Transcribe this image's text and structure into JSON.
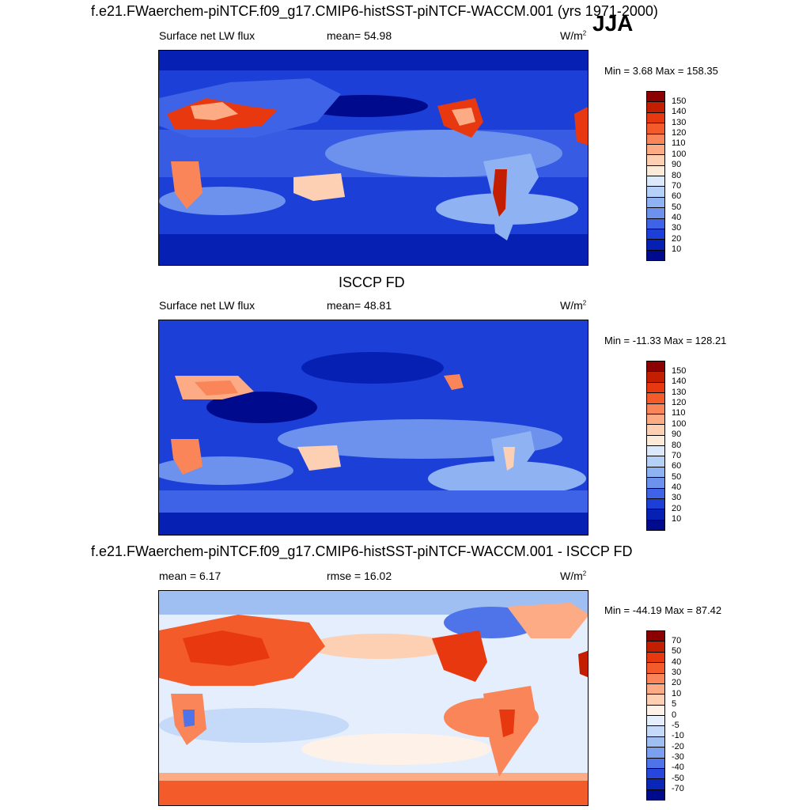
{
  "season": "JJA",
  "panels": [
    {
      "title": "f.e21.FWaerchem-piNTCF.f09_g17.CMIP6-histSST-piNTCF-WACCM.001 (yrs 1971-2000)",
      "left_label": "Surface net LW flux",
      "center_label": "mean=  54.98",
      "units": "W/m",
      "units_sup": "2",
      "minmax": "Min =   3.68 Max = 158.35",
      "colorbar_labels": [
        "150",
        "140",
        "130",
        "120",
        "110",
        "100",
        "90",
        "80",
        "70",
        "60",
        "50",
        "40",
        "30",
        "20",
        "10"
      ],
      "colorbar_colors": [
        "#8b0000",
        "#c41e00",
        "#e8380f",
        "#f45b2b",
        "#f98558",
        "#fcab84",
        "#fdd0b4",
        "#fdebd9",
        "#dbe9fb",
        "#b6d1f7",
        "#8fb3f2",
        "#6c92ee",
        "#3f63e6",
        "#1c3fd8",
        "#0620b4",
        "#000a8c"
      ]
    },
    {
      "title": "ISCCP FD",
      "left_label": "Surface net LW flux",
      "center_label": "mean=  48.81",
      "units": "W/m",
      "units_sup": "2",
      "minmax": "Min = -11.33 Max = 128.21",
      "colorbar_labels": [
        "150",
        "140",
        "130",
        "120",
        "110",
        "100",
        "90",
        "80",
        "70",
        "60",
        "50",
        "40",
        "30",
        "20",
        "10"
      ],
      "colorbar_colors": [
        "#8b0000",
        "#c41e00",
        "#e8380f",
        "#f45b2b",
        "#f98558",
        "#fcab84",
        "#fdd0b4",
        "#fdebd9",
        "#dbe9fb",
        "#b6d1f7",
        "#8fb3f2",
        "#6c92ee",
        "#3f63e6",
        "#1c3fd8",
        "#0620b4",
        "#000a8c"
      ]
    },
    {
      "title": "f.e21.FWaerchem-piNTCF.f09_g17.CMIP6-histSST-piNTCF-WACCM.001 - ISCCP FD",
      "left_label": "mean =   6.17",
      "center_label": "rmse =  16.02",
      "units": "W/m",
      "units_sup": "2",
      "minmax": "Min = -44.19 Max =  87.42",
      "colorbar_labels": [
        "70",
        "50",
        "40",
        "30",
        "20",
        "10",
        "5",
        "0",
        "-5",
        "-10",
        "-20",
        "-30",
        "-40",
        "-50",
        "-70"
      ],
      "colorbar_colors": [
        "#8b0000",
        "#c41e00",
        "#e8380f",
        "#f45b2b",
        "#f98558",
        "#fcab84",
        "#fdd0b4",
        "#fdf1e8",
        "#e4eefc",
        "#c4daf8",
        "#9fbff3",
        "#7aa0ef",
        "#4f73e8",
        "#2746dc",
        "#0a26b8",
        "#000a8c"
      ]
    }
  ],
  "chart_data": [
    {
      "type": "heatmap",
      "title": "f.e21.FWaerchem-piNTCF.f09_g17.CMIP6-histSST-piNTCF-WACCM.001 (yrs 1971-2000)",
      "season": "JJA",
      "variable": "Surface net LW flux",
      "units": "W/m2",
      "mean": 54.98,
      "min": 3.68,
      "max": 158.35,
      "levels": [
        10,
        20,
        30,
        40,
        50,
        60,
        70,
        80,
        90,
        100,
        110,
        120,
        130,
        140,
        150
      ]
    },
    {
      "type": "heatmap",
      "title": "ISCCP FD",
      "variable": "Surface net LW flux",
      "units": "W/m2",
      "mean": 48.81,
      "min": -11.33,
      "max": 128.21,
      "levels": [
        10,
        20,
        30,
        40,
        50,
        60,
        70,
        80,
        90,
        100,
        110,
        120,
        130,
        140,
        150
      ]
    },
    {
      "type": "heatmap",
      "title": "f.e21.FWaerchem-piNTCF.f09_g17.CMIP6-histSST-piNTCF-WACCM.001 - ISCCP FD",
      "units": "W/m2",
      "mean": 6.17,
      "rmse": 16.02,
      "min": -44.19,
      "max": 87.42,
      "levels": [
        -70,
        -50,
        -40,
        -30,
        -20,
        -10,
        -5,
        0,
        5,
        10,
        20,
        30,
        40,
        50,
        70
      ]
    }
  ]
}
